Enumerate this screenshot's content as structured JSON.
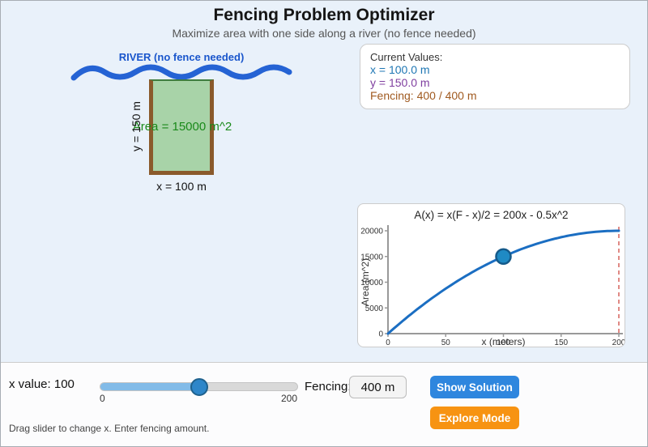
{
  "header": {
    "title": "Fencing Problem Optimizer",
    "subtitle": "Maximize area with one side along a river (no fence needed)"
  },
  "diagram": {
    "river_label": "RIVER (no fence needed)",
    "area_label": "Area = 15000 m^2",
    "y_label": "y = 150 m",
    "x_label": "x = 100 m",
    "river_color": "#2563d4",
    "field_fill_color": "#a8d3a8",
    "fence_color": "#8a5a2b"
  },
  "current_values": {
    "heading": "Current Values:",
    "x_line": "x = 100.0 m",
    "y_line": "y = 150.0 m",
    "fencing_line": "Fencing: 400 / 400 m",
    "x_color": "#1f77b4",
    "y_color": "#8040a0",
    "fencing_color": "#a05a20"
  },
  "chart_data": {
    "type": "line",
    "title": "A(x) = x(F - x)/2 = 200x - 0.5x^2",
    "xlabel": "x (meters)",
    "ylabel": "Area (m^2)",
    "xlim": [
      0,
      200
    ],
    "ylim": [
      0,
      20000
    ],
    "x_ticks": [
      0,
      50,
      100,
      150,
      200
    ],
    "y_ticks": [
      0,
      5000,
      10000,
      15000,
      20000
    ],
    "grid": false,
    "legend": false,
    "coefficients": {
      "quadratic": -0.5,
      "linear": 200
    },
    "sample_points": {
      "x": [
        0,
        25,
        50,
        75,
        100,
        125,
        150,
        175,
        200
      ],
      "y": [
        0,
        4687.5,
        8750,
        12187.5,
        15000,
        17187.5,
        18750,
        19687.5,
        20000
      ]
    },
    "current_point": {
      "x": 100,
      "y": 15000
    },
    "optimum_x_dashed_line": 200,
    "colors": {
      "curve": "#1b6ec2",
      "point_fill": "#1f8ac4",
      "point_stroke": "#155a8a",
      "dashed_line": "#e08a85",
      "axis": "#999999",
      "tick_text": "#333333"
    }
  },
  "controls": {
    "x_value_label": "x value: 100",
    "slider": {
      "min": 0,
      "max": 200,
      "value": 100,
      "min_label": "0",
      "max_label": "200"
    },
    "fencing_label": "Fencing:",
    "fencing_value": "400 m",
    "show_solution_label": "Show Solution",
    "explore_mode_label": "Explore Mode",
    "hint": "Drag slider to change x. Enter fencing amount.",
    "show_solution_color": "#2e86de",
    "explore_mode_color": "#f79312"
  }
}
